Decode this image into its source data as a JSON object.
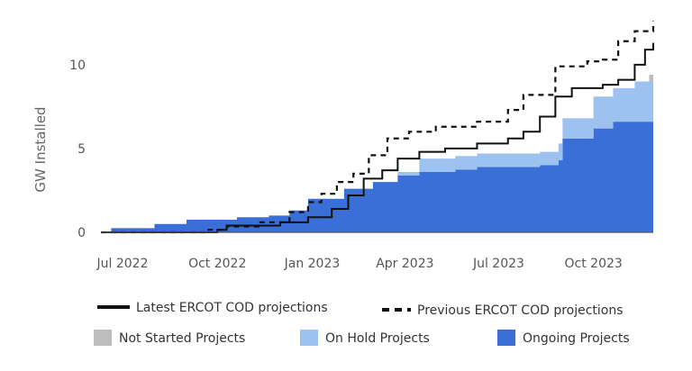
{
  "chart_data": {
    "type": "area",
    "title": "",
    "ylabel": "GW Installed",
    "xlabel": "",
    "ylim": [
      0,
      13
    ],
    "x_ticks": [
      {
        "label": "Jul 2022",
        "date": "2022-07-01"
      },
      {
        "label": "Oct 2022",
        "date": "2022-10-01"
      },
      {
        "label": "Jan 2023",
        "date": "2023-01-01"
      },
      {
        "label": "Apr 2023",
        "date": "2023-04-01"
      },
      {
        "label": "Jul 2023",
        "date": "2023-07-01"
      },
      {
        "label": "Oct 2023",
        "date": "2023-10-01"
      }
    ],
    "y_ticks": [
      0,
      5,
      10
    ],
    "grid": false,
    "legend_position": "bottom",
    "stacked_series": [
      {
        "name": "Ongoing Projects",
        "color": "#3b6fd8",
        "points": [
          {
            "date": "2022-06-10",
            "value": 0.0
          },
          {
            "date": "2022-06-20",
            "value": 0.25
          },
          {
            "date": "2022-08-01",
            "value": 0.5
          },
          {
            "date": "2022-09-01",
            "value": 0.75
          },
          {
            "date": "2022-10-20",
            "value": 0.9
          },
          {
            "date": "2022-11-20",
            "value": 1.0
          },
          {
            "date": "2022-12-10",
            "value": 1.3
          },
          {
            "date": "2022-12-28",
            "value": 2.0
          },
          {
            "date": "2023-02-01",
            "value": 2.6
          },
          {
            "date": "2023-03-01",
            "value": 3.0
          },
          {
            "date": "2023-03-25",
            "value": 3.4
          },
          {
            "date": "2023-04-15",
            "value": 3.6
          },
          {
            "date": "2023-05-20",
            "value": 3.75
          },
          {
            "date": "2023-06-10",
            "value": 3.9
          },
          {
            "date": "2023-08-10",
            "value": 4.0
          },
          {
            "date": "2023-08-28",
            "value": 4.3
          },
          {
            "date": "2023-09-01",
            "value": 5.6
          },
          {
            "date": "2023-10-01",
            "value": 6.2
          },
          {
            "date": "2023-10-20",
            "value": 6.6
          },
          {
            "date": "2023-11-28",
            "value": 6.6
          }
        ]
      },
      {
        "name": "On Hold Projects",
        "color": "#9ec2ef",
        "points": [
          {
            "date": "2022-06-10",
            "value": 0.0
          },
          {
            "date": "2023-03-10",
            "value": 0.0
          },
          {
            "date": "2023-03-25",
            "value": 0.2
          },
          {
            "date": "2023-04-15",
            "value": 0.8
          },
          {
            "date": "2023-05-20",
            "value": 0.8
          },
          {
            "date": "2023-06-10",
            "value": 0.8
          },
          {
            "date": "2023-08-10",
            "value": 0.8
          },
          {
            "date": "2023-08-28",
            "value": 1.0
          },
          {
            "date": "2023-09-01",
            "value": 1.2
          },
          {
            "date": "2023-10-01",
            "value": 1.9
          },
          {
            "date": "2023-10-20",
            "value": 2.0
          },
          {
            "date": "2023-11-10",
            "value": 2.4
          },
          {
            "date": "2023-11-28",
            "value": 2.8
          }
        ]
      },
      {
        "name": "Not Started Projects",
        "color": "#bdbdbd",
        "points": [
          {
            "date": "2022-06-10",
            "value": 0.0
          },
          {
            "date": "2023-11-20",
            "value": 0.0
          },
          {
            "date": "2023-11-24",
            "value": 0.4
          },
          {
            "date": "2023-11-28",
            "value": 0.4
          }
        ]
      }
    ],
    "line_series": [
      {
        "name": "Latest ERCOT COD projections",
        "style": "solid",
        "color": "#111111",
        "points": [
          {
            "date": "2022-06-10",
            "value": 0.0
          },
          {
            "date": "2022-10-01",
            "value": 0.15
          },
          {
            "date": "2022-10-10",
            "value": 0.4
          },
          {
            "date": "2022-12-01",
            "value": 0.6
          },
          {
            "date": "2022-12-28",
            "value": 0.9
          },
          {
            "date": "2023-01-20",
            "value": 1.4
          },
          {
            "date": "2023-02-05",
            "value": 2.2
          },
          {
            "date": "2023-02-20",
            "value": 3.2
          },
          {
            "date": "2023-03-10",
            "value": 3.7
          },
          {
            "date": "2023-03-25",
            "value": 4.4
          },
          {
            "date": "2023-04-15",
            "value": 4.8
          },
          {
            "date": "2023-05-10",
            "value": 5.0
          },
          {
            "date": "2023-06-10",
            "value": 5.3
          },
          {
            "date": "2023-07-10",
            "value": 5.6
          },
          {
            "date": "2023-07-25",
            "value": 6.0
          },
          {
            "date": "2023-08-10",
            "value": 6.9
          },
          {
            "date": "2023-08-25",
            "value": 8.1
          },
          {
            "date": "2023-09-10",
            "value": 8.6
          },
          {
            "date": "2023-10-10",
            "value": 8.8
          },
          {
            "date": "2023-10-25",
            "value": 9.1
          },
          {
            "date": "2023-11-10",
            "value": 10.0
          },
          {
            "date": "2023-11-20",
            "value": 10.9
          },
          {
            "date": "2023-11-28",
            "value": 11.3
          }
        ]
      },
      {
        "name": "Previous ERCOT COD projections",
        "style": "dashed",
        "color": "#111111",
        "points": [
          {
            "date": "2022-06-10",
            "value": 0.0
          },
          {
            "date": "2022-09-20",
            "value": 0.15
          },
          {
            "date": "2022-10-10",
            "value": 0.35
          },
          {
            "date": "2022-11-10",
            "value": 0.6
          },
          {
            "date": "2022-12-10",
            "value": 1.2
          },
          {
            "date": "2022-12-28",
            "value": 1.8
          },
          {
            "date": "2023-01-10",
            "value": 2.3
          },
          {
            "date": "2023-01-25",
            "value": 3.0
          },
          {
            "date": "2023-02-10",
            "value": 3.5
          },
          {
            "date": "2023-02-25",
            "value": 4.6
          },
          {
            "date": "2023-03-15",
            "value": 5.6
          },
          {
            "date": "2023-04-05",
            "value": 6.0
          },
          {
            "date": "2023-05-01",
            "value": 6.3
          },
          {
            "date": "2023-06-10",
            "value": 6.6
          },
          {
            "date": "2023-07-10",
            "value": 7.3
          },
          {
            "date": "2023-07-25",
            "value": 8.2
          },
          {
            "date": "2023-08-25",
            "value": 9.9
          },
          {
            "date": "2023-09-25",
            "value": 10.2
          },
          {
            "date": "2023-10-10",
            "value": 10.3
          },
          {
            "date": "2023-10-25",
            "value": 11.4
          },
          {
            "date": "2023-11-10",
            "value": 12.0
          },
          {
            "date": "2023-11-28",
            "value": 12.6
          }
        ]
      }
    ]
  }
}
